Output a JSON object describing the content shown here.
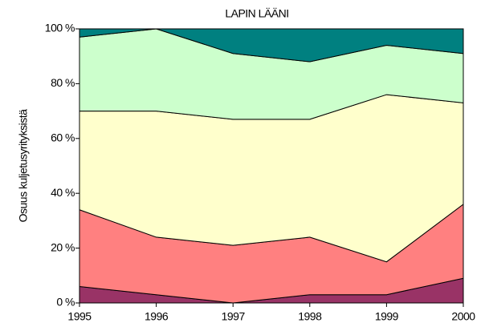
{
  "chart_data": {
    "type": "stacked_area",
    "title": "LAPIN LÄÄNI",
    "y_label": "Osuus kuljetusyrityksistä",
    "x": [
      1995,
      1996,
      1997,
      1998,
      1999,
      2000
    ],
    "xlim": [
      1995,
      2000
    ],
    "xticks": [
      1995,
      1996,
      1997,
      1998,
      1999,
      2000
    ],
    "ylim": [
      0,
      100
    ],
    "yticks": [
      {
        "value": 0,
        "label": "0 %"
      },
      {
        "value": 20,
        "label": "20 %"
      },
      {
        "value": 40,
        "label": "40 %"
      },
      {
        "value": 60,
        "label": "60 %"
      },
      {
        "value": 80,
        "label": "80 %"
      },
      {
        "value": 100,
        "label": "100 %"
      }
    ],
    "series": [
      {
        "color": "#993366",
        "values": [
          6,
          3,
          0,
          3,
          3,
          9
        ]
      },
      {
        "color": "#ff8080",
        "values": [
          28,
          21,
          21,
          21,
          12,
          27
        ]
      },
      {
        "color": "#ffffcc",
        "values": [
          36,
          46,
          46,
          43,
          61,
          37
        ]
      },
      {
        "color": "#ccffcc",
        "values": [
          27,
          30,
          24,
          21,
          18,
          18
        ]
      },
      {
        "color": "#008080",
        "values": [
          3,
          0,
          9,
          12,
          6,
          9
        ]
      }
    ]
  }
}
